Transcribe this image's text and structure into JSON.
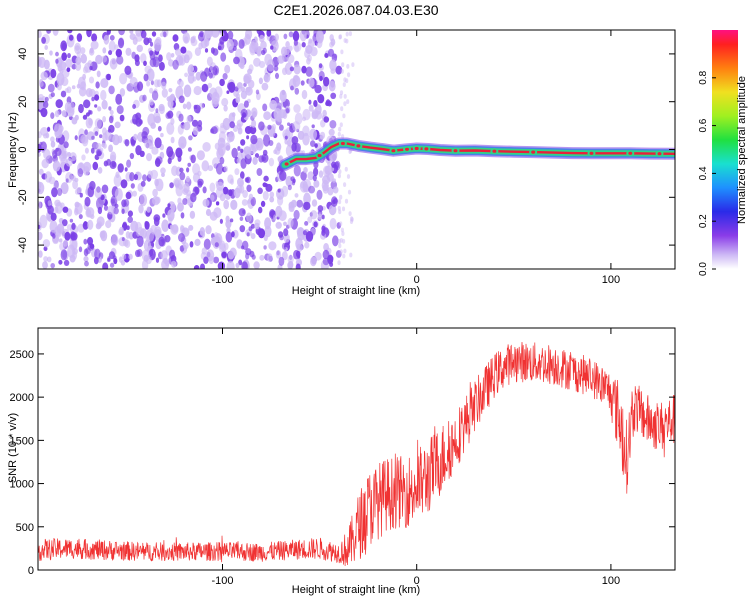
{
  "title": "C2E1.2026.087.04.03.E30",
  "chart_data": [
    {
      "type": "heatmap",
      "title": "C2E1.2026.087.04.03.E30",
      "xlabel": "Height of straight line (km)",
      "ylabel": "Frequency (Hz)",
      "xlim": [
        -195,
        133
      ],
      "ylim": [
        -50,
        50
      ],
      "xticks": [
        -100,
        0,
        100
      ],
      "yticks": [
        -40,
        -20,
        0,
        20,
        40
      ],
      "grid": false,
      "noise_region_x": [
        -195,
        -40
      ],
      "signal_track": {
        "description": "narrow high-amplitude ridge near 0 Hz",
        "x": [
          -68,
          -62,
          -57,
          -52,
          -48,
          -44,
          -40,
          -36,
          -30,
          -24,
          -18,
          -12,
          -6,
          0,
          6,
          12,
          20,
          30,
          40,
          50,
          60,
          70,
          80,
          90,
          100,
          110,
          120,
          133
        ],
        "frequency": [
          -6.5,
          -4,
          -4,
          -3.5,
          -1.5,
          1,
          2.5,
          2.5,
          1.5,
          0.8,
          0.2,
          -0.5,
          0,
          0.4,
          0.2,
          -0.2,
          -0.5,
          -0.4,
          -0.7,
          -0.9,
          -1.1,
          -1.3,
          -1.5,
          -1.6,
          -1.6,
          -1.6,
          -1.7,
          -1.8
        ]
      },
      "colorbar": {
        "label": "Normalized spectral amplitude",
        "range": [
          0,
          1
        ],
        "ticks": [
          0.0,
          0.2,
          0.4,
          0.6,
          0.8
        ],
        "tick_labels": [
          "0.0",
          "0.2",
          "0.4",
          "0.6",
          "0.8"
        ]
      },
      "colors": {
        "noise": "#7a3fe6",
        "noise_light": "#cdb8f5",
        "ridge_core": "#e8203a",
        "ridge_mid": "#2fd48a",
        "ridge_outer": "#3f7ce8"
      }
    },
    {
      "type": "line",
      "xlabel": "Height of straight line (km)",
      "ylabel": "SNR (10 * v/v)",
      "xlim": [
        -195,
        133
      ],
      "ylim": [
        0,
        2800
      ],
      "xticks": [
        -100,
        0,
        100
      ],
      "yticks": [
        0,
        500,
        1000,
        1500,
        2000,
        2500
      ],
      "grid": false,
      "series": [
        {
          "name": "SNR",
          "color": "#f03232",
          "envelope_x": [
            -195,
            -180,
            -160,
            -140,
            -120,
            -100,
            -80,
            -60,
            -50,
            -40,
            -35,
            -30,
            -25,
            -20,
            -15,
            -10,
            -5,
            0,
            5,
            10,
            15,
            20,
            30,
            40,
            45,
            50,
            60,
            70,
            80,
            90,
            95,
            100,
            105,
            108,
            112,
            118,
            125,
            133
          ],
          "mean": [
            230,
            250,
            230,
            210,
            210,
            215,
            205,
            240,
            250,
            200,
            250,
            500,
            700,
            800,
            880,
            900,
            910,
            960,
            1050,
            1200,
            1350,
            1500,
            1900,
            2250,
            2350,
            2420,
            2400,
            2380,
            2300,
            2230,
            2150,
            2050,
            1700,
            1300,
            1900,
            1750,
            1650,
            1750
          ],
          "spread": [
            130,
            120,
            120,
            110,
            110,
            110,
            110,
            120,
            130,
            120,
            250,
            400,
            450,
            450,
            430,
            420,
            420,
            450,
            450,
            430,
            400,
            350,
            300,
            260,
            250,
            240,
            240,
            240,
            230,
            230,
            240,
            260,
            500,
            450,
            300,
            300,
            300,
            300
          ]
        }
      ]
    }
  ]
}
